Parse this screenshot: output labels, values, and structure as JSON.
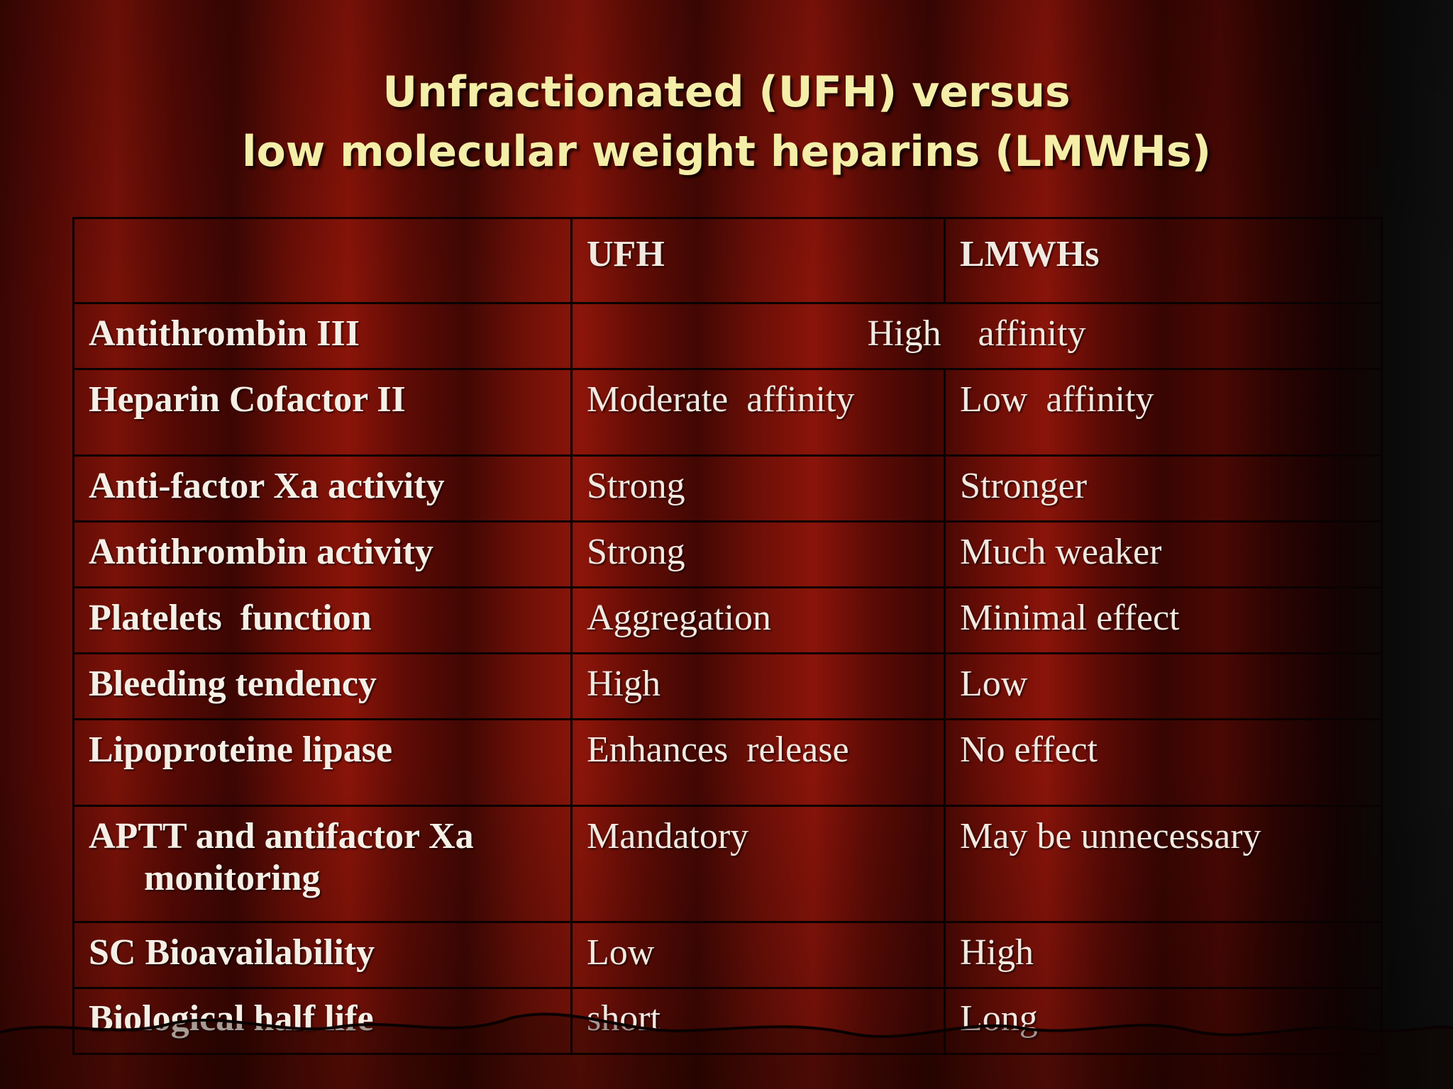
{
  "title": {
    "line1": "Unfractionated (UFH) versus",
    "line2": "low molecular weight heparins (LMWHs)"
  },
  "table": {
    "headers": [
      "",
      "UFH",
      "LMWHs"
    ],
    "rows": [
      {
        "label": "Antithrombin III",
        "merged": "High    affinity"
      },
      {
        "label": "Heparin Cofactor II",
        "ufh": "Moderate  affinity",
        "lmwh": "Low  affinity"
      },
      {
        "label": "Anti-factor Xa activity",
        "ufh": "Strong",
        "lmwh": "Stronger"
      },
      {
        "label": "Antithrombin activity",
        "ufh": "Strong",
        "lmwh": "Much weaker"
      },
      {
        "label": "Platelets  function",
        "ufh": "Aggregation",
        "lmwh": "Minimal effect"
      },
      {
        "label": "Bleeding tendency",
        "ufh": "High",
        "lmwh": "Low"
      },
      {
        "label": "Lipoproteine lipase",
        "ufh": "Enhances  release",
        "lmwh": "No effect"
      },
      {
        "label": "APTT and antifactor Xa",
        "label_cont": "monitoring",
        "ufh": "Mandatory",
        "lmwh": "May be unnecessary"
      },
      {
        "label": "SC Bioavailability",
        "ufh": "Low",
        "lmwh": "High"
      },
      {
        "label": "Biological half life",
        "ufh": "short",
        "lmwh": "Long"
      }
    ]
  }
}
